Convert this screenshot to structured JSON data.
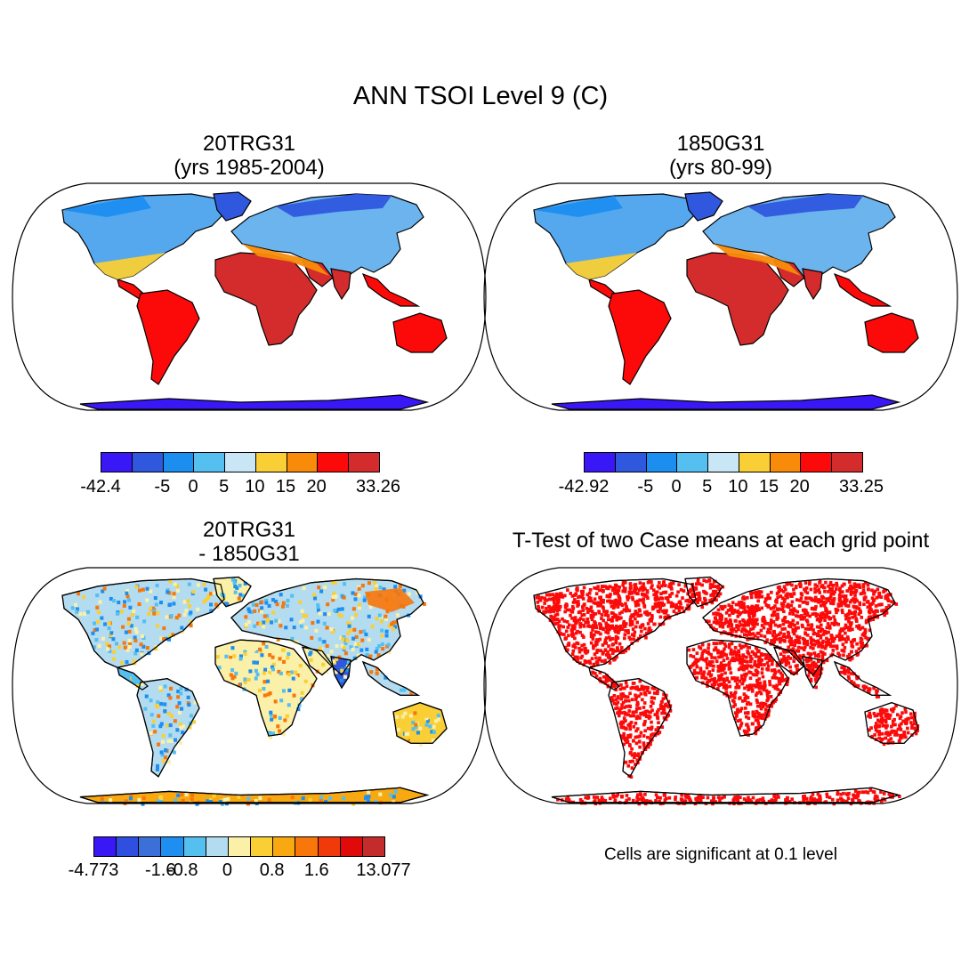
{
  "title": "ANN TSOI Level 9 (C)",
  "panels": {
    "top_left": {
      "title_line1": "20TRG31",
      "title_line2": "(yrs 1985-2004)"
    },
    "top_right": {
      "title_line1": "1850G31",
      "title_line2": "(yrs 80-99)"
    },
    "bottom_left": {
      "title_line1": "20TRG31",
      "title_line2": "- 1850G31"
    },
    "bottom_right": {
      "title": "T-Test of two Case means at each grid point",
      "note": "Cells are significant at 0.1 level"
    }
  },
  "colorbars": {
    "top_left": {
      "colors": [
        "#3a18f5",
        "#3058de",
        "#1c8ef0",
        "#55bff0",
        "#c8e6f5",
        "#f9cf35",
        "#f88c0a",
        "#fc0a0a",
        "#d42c2c"
      ],
      "labels": [
        "-42.4",
        "-5",
        "0",
        "5",
        "10",
        "15",
        "20",
        "33.26"
      ],
      "label_boundaries": [
        0,
        2,
        3,
        4,
        5,
        6,
        7,
        9
      ]
    },
    "top_right": {
      "colors": [
        "#3a18f5",
        "#3058de",
        "#1c8ef0",
        "#55bff0",
        "#c8e6f5",
        "#f9cf35",
        "#f88c0a",
        "#fc0a0a",
        "#d42c2c"
      ],
      "labels": [
        "-42.92",
        "-5",
        "0",
        "5",
        "10",
        "15",
        "20",
        "33.25"
      ],
      "label_boundaries": [
        0,
        2,
        3,
        4,
        5,
        6,
        7,
        9
      ]
    },
    "bottom_left": {
      "colors": [
        "#3a18f5",
        "#2e4fe0",
        "#3a70d8",
        "#1e8ef0",
        "#55bff0",
        "#b4dcf0",
        "#fbf0a8",
        "#f9cf35",
        "#f8a810",
        "#f8760a",
        "#f03a0a",
        "#e00a0a",
        "#c42c2c"
      ],
      "labels": [
        "-4.773",
        "-1.6",
        "-0.8",
        "0",
        "0.8",
        "1.6",
        "13.077"
      ],
      "label_boundaries": [
        0,
        3,
        4,
        6,
        8,
        10,
        13
      ]
    }
  },
  "legend_colors": {
    "cold": "#3a18f5",
    "warm": "#d42c2c",
    "significant": "#fc0a0a",
    "coastline": "#000000"
  }
}
